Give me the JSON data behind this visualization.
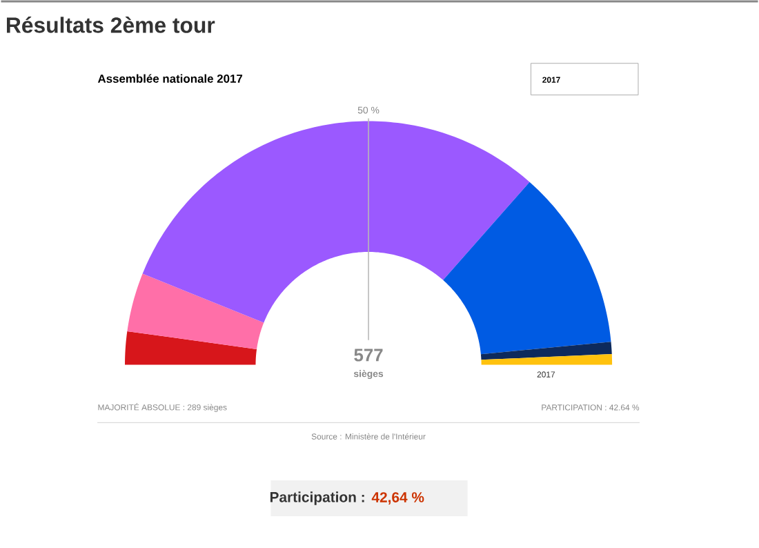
{
  "chart_data": {
    "type": "donut",
    "title": "Résultats 2ème tour",
    "subtitle": "Assemblée nationale 2017",
    "categories": [
      null,
      null,
      null,
      null,
      null,
      null
    ],
    "values": [
      4.4,
      7.8,
      60.8,
      24.0,
      1.6,
      1.4
    ],
    "colors": [
      "#d7161b",
      "#ff6fa8",
      "#9b59ff",
      "#005be3",
      "#0d2a5c",
      "#ffc20e"
    ],
    "annotations": [
      "2017",
      "50 %",
      "577",
      "sièges",
      "2017",
      "MAJORITÉ ABSOLUE : 289 sièges",
      "PARTICIPATION : 42.64 %",
      "Source : Ministère de l'Intérieur",
      "Participation :",
      "42,64 %"
    ]
  }
}
